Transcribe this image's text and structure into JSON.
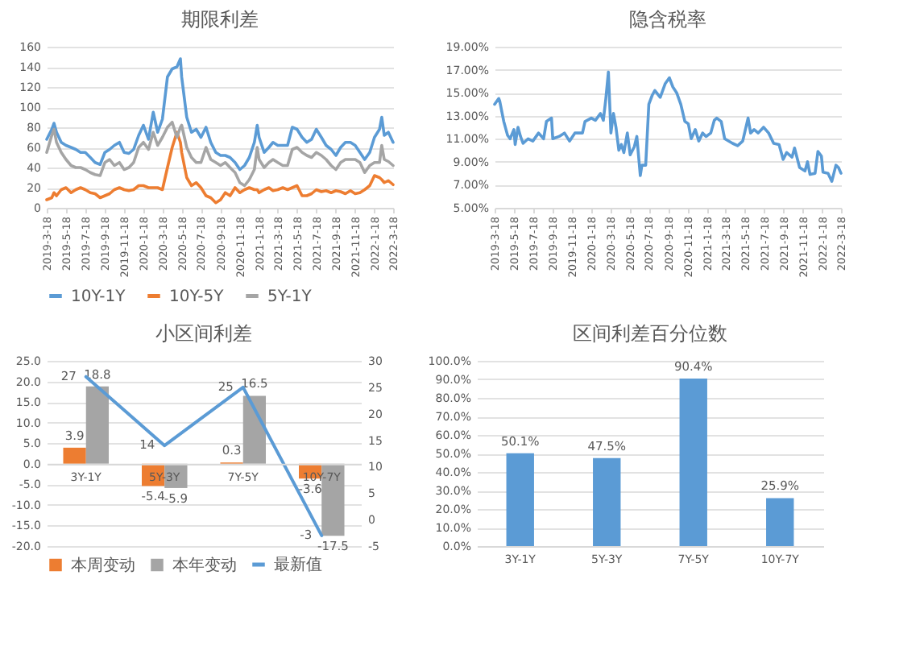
{
  "chart_data": [
    {
      "type": "line",
      "title": "期限利差",
      "x": [
        "2019-03-18",
        "2019-04-03",
        "2019-04-10",
        "2019-04-18",
        "2019-05-03",
        "2019-05-18",
        "2019-06-03",
        "2019-06-18",
        "2019-07-03",
        "2019-07-18",
        "2019-08-03",
        "2019-08-18",
        "2019-09-03",
        "2019-09-18",
        "2019-10-03",
        "2019-10-18",
        "2019-11-03",
        "2019-11-18",
        "2019-12-03",
        "2019-12-18",
        "2020-01-03",
        "2020-01-18",
        "2020-02-03",
        "2020-02-18",
        "2020-03-03",
        "2020-03-18",
        "2020-04-03",
        "2020-04-18",
        "2020-05-03",
        "2020-05-14",
        "2020-05-18",
        "2020-06-03",
        "2020-06-18",
        "2020-07-03",
        "2020-07-18",
        "2020-08-03",
        "2020-08-18",
        "2020-09-03",
        "2020-09-18",
        "2020-10-03",
        "2020-10-18",
        "2020-11-03",
        "2020-11-18",
        "2020-12-03",
        "2020-12-18",
        "2021-01-03",
        "2021-01-12",
        "2021-01-18",
        "2021-02-03",
        "2021-02-18",
        "2021-03-03",
        "2021-03-18",
        "2021-04-03",
        "2021-04-18",
        "2021-05-03",
        "2021-05-18",
        "2021-06-03",
        "2021-06-18",
        "2021-07-03",
        "2021-07-18",
        "2021-08-03",
        "2021-08-18",
        "2021-09-03",
        "2021-09-18",
        "2021-10-03",
        "2021-10-18",
        "2021-11-03",
        "2021-11-18",
        "2021-12-03",
        "2021-12-18",
        "2022-01-03",
        "2022-01-18",
        "2022-02-03",
        "2022-02-10",
        "2022-02-18",
        "2022-03-03",
        "2022-03-18"
      ],
      "series": [
        {
          "name": "10Y-1Y",
          "color": "#5b9bd5",
          "values": [
            68,
            78,
            84,
            75,
            65,
            62,
            60,
            58,
            55,
            55,
            50,
            45,
            43,
            55,
            58,
            62,
            65,
            55,
            54,
            58,
            72,
            82,
            68,
            95,
            75,
            88,
            130,
            138,
            140,
            148,
            130,
            90,
            75,
            78,
            70,
            80,
            65,
            55,
            52,
            52,
            50,
            45,
            38,
            42,
            50,
            65,
            82,
            70,
            55,
            60,
            65,
            62,
            62,
            62,
            80,
            78,
            70,
            65,
            68,
            78,
            70,
            62,
            58,
            52,
            60,
            65,
            65,
            62,
            55,
            48,
            55,
            70,
            78,
            90,
            72,
            75,
            65
          ]
        },
        {
          "name": "10Y-5Y",
          "color": "#ed7d31",
          "values": [
            8,
            10,
            15,
            12,
            18,
            20,
            15,
            18,
            20,
            18,
            15,
            14,
            10,
            12,
            14,
            18,
            20,
            18,
            17,
            18,
            22,
            22,
            20,
            20,
            20,
            18,
            40,
            60,
            75,
            65,
            55,
            30,
            22,
            25,
            20,
            12,
            10,
            5,
            8,
            15,
            12,
            20,
            15,
            18,
            20,
            18,
            18,
            15,
            18,
            20,
            17,
            18,
            20,
            18,
            20,
            22,
            12,
            12,
            14,
            18,
            16,
            17,
            15,
            17,
            16,
            14,
            17,
            14,
            15,
            18,
            22,
            32,
            30,
            28,
            25,
            27,
            23
          ]
        },
        {
          "name": "5Y-1Y",
          "color": "#a5a5a5",
          "values": [
            55,
            72,
            78,
            65,
            55,
            48,
            42,
            40,
            40,
            38,
            35,
            33,
            32,
            45,
            48,
            42,
            45,
            38,
            40,
            45,
            60,
            65,
            58,
            75,
            62,
            70,
            80,
            85,
            70,
            80,
            82,
            60,
            50,
            45,
            45,
            60,
            48,
            45,
            42,
            45,
            40,
            35,
            25,
            22,
            28,
            38,
            60,
            48,
            40,
            45,
            48,
            45,
            42,
            42,
            58,
            60,
            55,
            52,
            50,
            55,
            52,
            48,
            42,
            38,
            45,
            48,
            48,
            48,
            45,
            35,
            42,
            45,
            45,
            62,
            48,
            46,
            42
          ]
        }
      ],
      "xlim": [
        "2019-03-18",
        "2022-03-18"
      ],
      "xticks": [
        {
          "value": "2019-03-18",
          "label": "2019-3-18"
        },
        {
          "value": "2019-05-18",
          "label": "2019-5-18"
        },
        {
          "value": "2019-07-18",
          "label": "2019-7-18"
        },
        {
          "value": "2019-09-18",
          "label": "2019-9-18"
        },
        {
          "value": "2019-11-18",
          "label": "2019-11-18"
        },
        {
          "value": "2020-01-18",
          "label": "2020-1-18"
        },
        {
          "value": "2020-03-18",
          "label": "2020-3-18"
        },
        {
          "value": "2020-05-18",
          "label": "2020-5-18"
        },
        {
          "value": "2020-07-18",
          "label": "2020-7-18"
        },
        {
          "value": "2020-09-18",
          "label": "2020-9-18"
        },
        {
          "value": "2020-11-18",
          "label": "2020-11-18"
        },
        {
          "value": "2021-01-18",
          "label": "2021-1-18"
        },
        {
          "value": "2021-03-18",
          "label": "2021-3-18"
        },
        {
          "value": "2021-05-18",
          "label": "2021-5-18"
        },
        {
          "value": "2021-07-18",
          "label": "2021-7-18"
        },
        {
          "value": "2021-09-18",
          "label": "2021-9-18"
        },
        {
          "value": "2021-11-18",
          "label": "2021-11-18"
        },
        {
          "value": "2022-01-18",
          "label": "2022-1-18"
        },
        {
          "value": "2022-03-18",
          "label": "2022-3-18"
        }
      ],
      "ylim": [
        0,
        160
      ],
      "yticks": [
        0,
        20,
        40,
        60,
        80,
        100,
        120,
        140,
        160
      ],
      "grid": "y",
      "legend": "bottom"
    },
    {
      "type": "line",
      "title": "隐含税率",
      "x": [
        "2019-03-18",
        "2019-03-31",
        "2019-04-03",
        "2019-04-16",
        "2019-04-28",
        "2019-05-06",
        "2019-05-18",
        "2019-05-22",
        "2019-05-31",
        "2019-06-08",
        "2019-06-16",
        "2019-07-02",
        "2019-07-17",
        "2019-08-04",
        "2019-08-20",
        "2019-08-29",
        "2019-09-14",
        "2019-09-18",
        "2019-10-08",
        "2019-10-25",
        "2019-11-10",
        "2019-11-27",
        "2019-12-21",
        "2019-12-29",
        "2020-01-18",
        "2020-01-31",
        "2020-02-16",
        "2020-02-25",
        "2020-03-04",
        "2020-03-12",
        "2020-03-20",
        "2020-03-28",
        "2020-04-05",
        "2020-04-14",
        "2020-04-22",
        "2020-04-30",
        "2020-05-11",
        "2020-05-20",
        "2020-06-02",
        "2020-06-10",
        "2020-06-21",
        "2020-06-26",
        "2020-07-08",
        "2020-07-18",
        "2020-07-29",
        "2020-08-06",
        "2020-08-23",
        "2020-09-08",
        "2020-09-21",
        "2020-10-02",
        "2020-10-14",
        "2020-10-27",
        "2020-11-09",
        "2020-11-20",
        "2020-11-29",
        "2020-12-12",
        "2020-12-23",
        "2021-01-04",
        "2021-01-15",
        "2021-01-30",
        "2021-02-10",
        "2021-02-18",
        "2021-03-04",
        "2021-03-15",
        "2021-04-09",
        "2021-04-25",
        "2021-05-11",
        "2021-05-28",
        "2021-06-05",
        "2021-06-16",
        "2021-06-29",
        "2021-07-16",
        "2021-08-01",
        "2021-08-17",
        "2021-09-03",
        "2021-09-16",
        "2021-09-27",
        "2021-10-14",
        "2021-10-22",
        "2021-11-07",
        "2021-11-24",
        "2021-12-02",
        "2021-12-10",
        "2021-12-26",
        "2022-01-04",
        "2022-01-15",
        "2022-01-20",
        "2022-02-05",
        "2022-02-17",
        "2022-03-02",
        "2022-03-10",
        "2022-03-18"
      ],
      "values": [
        14.0,
        14.5,
        14.3,
        12.5,
        11.3,
        11.0,
        11.8,
        10.5,
        12.0,
        11.2,
        10.6,
        11.0,
        10.8,
        11.5,
        11.0,
        12.5,
        12.8,
        11.0,
        11.2,
        11.5,
        10.8,
        11.5,
        11.5,
        12.5,
        12.8,
        12.6,
        13.2,
        12.6,
        14.5,
        16.8,
        11.5,
        13.2,
        12.0,
        10.0,
        10.5,
        9.8,
        11.5,
        9.6,
        10.3,
        11.2,
        7.8,
        8.7,
        8.7,
        14.0,
        14.8,
        15.2,
        14.6,
        15.8,
        16.3,
        15.5,
        15.0,
        14.0,
        12.5,
        12.3,
        11.0,
        11.8,
        10.8,
        11.5,
        11.2,
        11.5,
        12.6,
        12.8,
        12.5,
        11.0,
        10.6,
        10.4,
        10.8,
        12.8,
        11.5,
        11.8,
        11.5,
        12.0,
        11.5,
        10.6,
        10.5,
        9.2,
        9.8,
        9.4,
        10.2,
        8.5,
        8.2,
        9.0,
        7.9,
        8.0,
        9.9,
        9.5,
        8.1,
        8.0,
        7.3,
        8.7,
        8.5,
        8.0
      ],
      "color": "#5b9bd5",
      "xlim": [
        "2019-03-18",
        "2022-03-18"
      ],
      "xticks": [
        {
          "value": "2019-03-18",
          "label": "2019-3-18"
        },
        {
          "value": "2019-05-18",
          "label": "2019-5-18"
        },
        {
          "value": "2019-07-18",
          "label": "2019-7-18"
        },
        {
          "value": "2019-09-18",
          "label": "2019-9-18"
        },
        {
          "value": "2019-11-18",
          "label": "2019-11-18"
        },
        {
          "value": "2020-01-18",
          "label": "2020-1-18"
        },
        {
          "value": "2020-03-18",
          "label": "2020-3-18"
        },
        {
          "value": "2020-05-18",
          "label": "2020-5-18"
        },
        {
          "value": "2020-07-18",
          "label": "2020-7-18"
        },
        {
          "value": "2020-09-18",
          "label": "2020-9-18"
        },
        {
          "value": "2020-11-18",
          "label": "2020-11-18"
        },
        {
          "value": "2021-01-18",
          "label": "2021-1-18"
        },
        {
          "value": "2021-03-18",
          "label": "2021-3-18"
        },
        {
          "value": "2021-05-18",
          "label": "2021-5-18"
        },
        {
          "value": "2021-07-18",
          "label": "2021-7-18"
        },
        {
          "value": "2021-09-18",
          "label": "2021-9-18"
        },
        {
          "value": "2021-11-18",
          "label": "2021-11-18"
        },
        {
          "value": "2022-01-18",
          "label": "2022-1-18"
        },
        {
          "value": "2022-03-18",
          "label": "2022-3-18"
        }
      ],
      "ylim": [
        5,
        19
      ],
      "yticks": [
        {
          "value": 5,
          "label": "5.00%"
        },
        {
          "value": 7,
          "label": "7.00%"
        },
        {
          "value": 9,
          "label": "9.00%"
        },
        {
          "value": 11,
          "label": "11.00%"
        },
        {
          "value": 13,
          "label": "13.00%"
        },
        {
          "value": 15,
          "label": "15.00%"
        },
        {
          "value": 17,
          "label": "17.00%"
        },
        {
          "value": 19,
          "label": "19.00%"
        }
      ],
      "grid": "y"
    },
    {
      "type": "bar",
      "title": "小区间利差",
      "categories": [
        "3Y-1Y",
        "5Y-3Y",
        "7Y-5Y",
        "10Y-7Y"
      ],
      "series": [
        {
          "name": "本周变动",
          "color": "#ed7d31",
          "values": [
            3.9,
            -5.4,
            0.3,
            -3.6
          ]
        },
        {
          "name": "本年变动",
          "color": "#a5a5a5",
          "values": [
            18.8,
            -5.9,
            16.5,
            -17.5
          ]
        },
        {
          "name": "最新值",
          "type": "line",
          "axis": "y2",
          "color": "#5b9bd5",
          "values": [
            27,
            14,
            25,
            -3
          ]
        }
      ],
      "ylim": [
        -20,
        25
      ],
      "yticks": [
        {
          "value": -20,
          "label": "-20.0"
        },
        {
          "value": -15,
          "label": "-15.0"
        },
        {
          "value": -10,
          "label": "-10.0"
        },
        {
          "value": -5,
          "label": "-5.0"
        },
        {
          "value": 0,
          "label": "0.0"
        },
        {
          "value": 5,
          "label": "5.0"
        },
        {
          "value": 10,
          "label": "10.0"
        },
        {
          "value": 15,
          "label": "15.0"
        },
        {
          "value": 20,
          "label": "20.0"
        },
        {
          "value": 25,
          "label": "25.0"
        }
      ],
      "y2lim": [
        -5,
        30
      ],
      "y2ticks": [
        -5,
        0,
        5,
        10,
        15,
        20,
        25,
        30
      ],
      "grid": "y",
      "legend": "bottom",
      "data_labels": true
    },
    {
      "type": "bar",
      "title": "区间利差百分位数",
      "categories": [
        "3Y-1Y",
        "5Y-3Y",
        "7Y-5Y",
        "10Y-7Y"
      ],
      "values": [
        50.1,
        47.5,
        90.4,
        25.9
      ],
      "color": "#5b9bd5",
      "value_labels": [
        "50.1%",
        "47.5%",
        "90.4%",
        "25.9%"
      ],
      "ylim": [
        0,
        100
      ],
      "yticks": [
        {
          "value": 0,
          "label": "0.0%"
        },
        {
          "value": 10,
          "label": "10.0%"
        },
        {
          "value": 20,
          "label": "20.0%"
        },
        {
          "value": 30,
          "label": "30.0%"
        },
        {
          "value": 40,
          "label": "40.0%"
        },
        {
          "value": 50,
          "label": "50.0%"
        },
        {
          "value": 60,
          "label": "60.0%"
        },
        {
          "value": 70,
          "label": "70.0%"
        },
        {
          "value": 80,
          "label": "80.0%"
        },
        {
          "value": 90,
          "label": "90.0%"
        },
        {
          "value": 100,
          "label": "100.0%"
        }
      ],
      "grid": "y"
    }
  ]
}
